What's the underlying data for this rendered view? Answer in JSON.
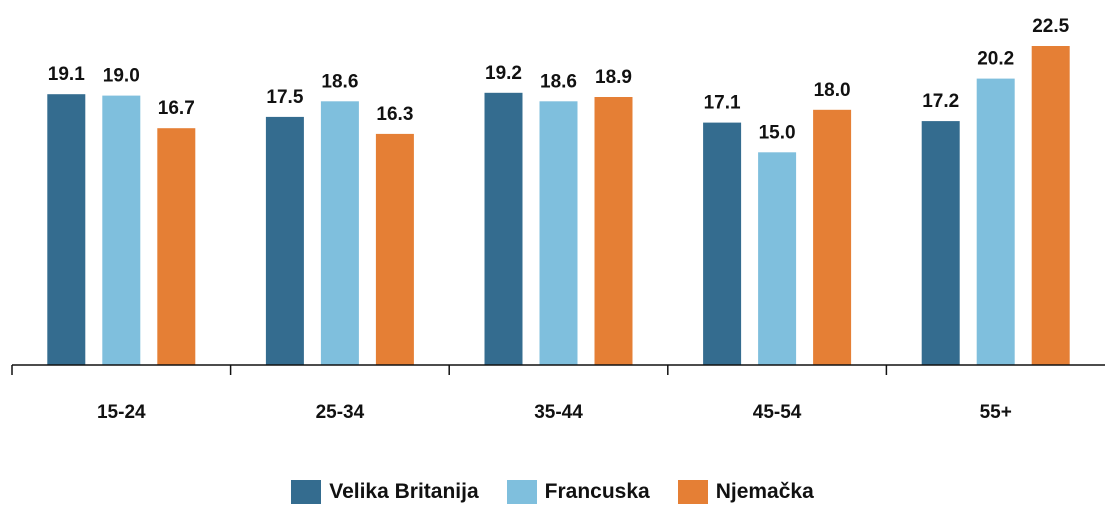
{
  "chart_data": {
    "type": "bar",
    "title": "",
    "xlabel": "",
    "ylabel": "",
    "ylim": [
      0,
      22.5
    ],
    "grid": false,
    "legend_position": "bottom-center",
    "categories": [
      "15-24",
      "25-34",
      "35-44",
      "45-54",
      "55+"
    ],
    "series": [
      {
        "name": "Velika Britanija",
        "color": "#346C8F",
        "values": [
          19.1,
          17.5,
          19.2,
          17.1,
          17.2
        ]
      },
      {
        "name": "Francuska",
        "color": "#7FBFDD",
        "values": [
          19.0,
          18.6,
          18.6,
          15.0,
          20.2
        ]
      },
      {
        "name": "Njemačka",
        "color": "#E57F35",
        "values": [
          16.7,
          16.3,
          18.9,
          18.0,
          22.5
        ]
      }
    ]
  }
}
